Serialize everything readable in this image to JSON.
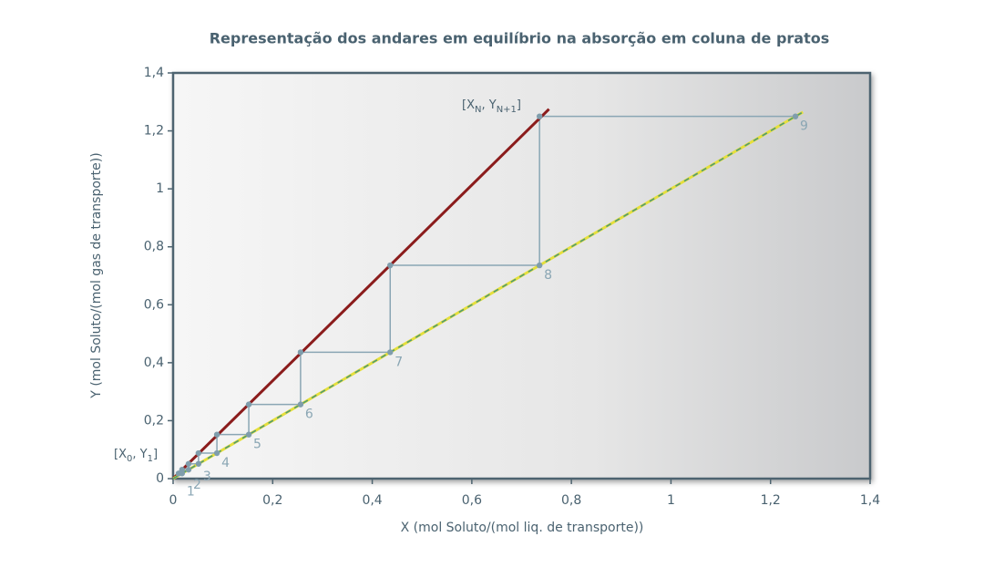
{
  "chart_data": {
    "type": "staircase",
    "title": "Representação dos andares em equilíbrio na absorção em coluna de pratos",
    "x_label": "X (mol Soluto/(mol liq. de transporte))",
    "y_label": "Y (mol Soluto/(mol gas de transporte))",
    "xlim": [
      0,
      1.4
    ],
    "ylim": [
      0,
      1.4
    ],
    "xticks": [
      0,
      {
        "value": 0.2,
        "label": "0,2"
      },
      {
        "value": 0.4,
        "label": "0,4"
      },
      {
        "value": 0.6,
        "label": "0,6"
      },
      {
        "value": 0.8,
        "label": "0,8"
      },
      1,
      {
        "value": 1.2,
        "label": "1,2"
      },
      {
        "value": 1.4,
        "label": "1,4"
      }
    ],
    "yticks": [
      0,
      {
        "value": 0.2,
        "label": "0,2"
      },
      {
        "value": 0.4,
        "label": "0,4"
      },
      {
        "value": 0.6,
        "label": "0,6"
      },
      {
        "value": 0.8,
        "label": "0,8"
      },
      1,
      {
        "value": 1.2,
        "label": "1,2"
      },
      {
        "value": 1.4,
        "label": "1,4"
      }
    ],
    "lines": [
      {
        "color": "#8b1c1c",
        "x": [
          0,
          0.755
        ],
        "y": [
          0,
          1.275
        ]
      },
      {
        "color": "#e6df3c",
        "dash_color": "#4f9a72",
        "x": [
          0,
          1.265
        ],
        "y": [
          0,
          1.265
        ]
      }
    ],
    "step_color": "#8aa6b4",
    "stages": {
      "labels": [
        "1",
        "2",
        "3",
        "4",
        "5",
        "6",
        "7",
        "8",
        "9"
      ],
      "x": [
        0.018,
        0.031,
        0.051,
        0.088,
        0.152,
        0.256,
        0.436,
        0.736,
        1.25
      ],
      "y": [
        0.018,
        0.031,
        0.051,
        0.088,
        0.152,
        0.256,
        0.436,
        0.736,
        1.25
      ]
    },
    "operating_points": {
      "x": [
        0.011,
        0.018,
        0.031,
        0.051,
        0.088,
        0.152,
        0.256,
        0.436,
        0.736
      ],
      "y": [
        0.018,
        0.031,
        0.051,
        0.088,
        0.152,
        0.256,
        0.436,
        0.736,
        1.25
      ]
    },
    "annotations": [
      {
        "parts": [
          "[X",
          "0",
          ", Y",
          "1",
          "]"
        ]
      },
      {
        "parts": [
          "[X",
          "N",
          ", Y",
          "N+1",
          "]"
        ]
      }
    ]
  }
}
